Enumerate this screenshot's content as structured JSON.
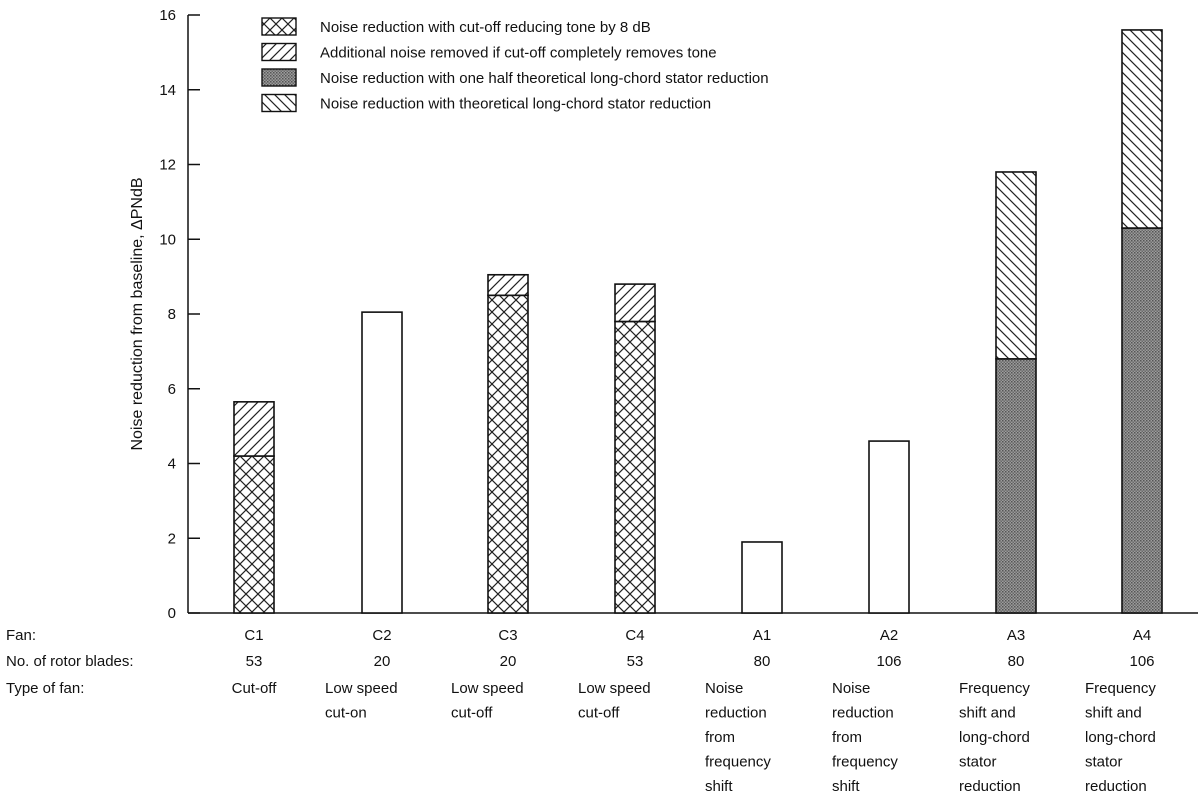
{
  "chart_data": {
    "type": "bar",
    "stacked": true,
    "title": "",
    "xlabel": "",
    "ylabel": "Noise reduction from baseline, ΔPNdB",
    "ylim": [
      0,
      16
    ],
    "yticks": [
      0,
      2,
      4,
      6,
      8,
      10,
      12,
      14,
      16
    ],
    "grid": false,
    "legend_position": "top",
    "categories": [
      "C1",
      "C2",
      "C3",
      "C4",
      "A1",
      "A2",
      "A3",
      "A4"
    ],
    "series": [
      {
        "name": "Noise reduction with cut-off reducing tone by 8 dB",
        "pattern": "crosshatch",
        "values": [
          4.2,
          0,
          8.5,
          7.8,
          0,
          0,
          0,
          0
        ]
      },
      {
        "name": "Additional noise removed if cut-off completely removes tone",
        "pattern": "forward-diagonal",
        "values": [
          1.45,
          0,
          0.55,
          1.0,
          0,
          0,
          0,
          0
        ]
      },
      {
        "name": "Noise reduction with one half theoretical long-chord stator reduction",
        "pattern": "dense-stipple",
        "values": [
          0,
          0,
          0,
          0,
          0,
          0,
          6.8,
          10.3
        ]
      },
      {
        "name": "Noise reduction with theoretical long-chord stator reduction",
        "pattern": "back-diagonal",
        "values": [
          0,
          0,
          0,
          0,
          0,
          0,
          5.0,
          5.3
        ]
      },
      {
        "name": "",
        "pattern": "plain",
        "values": [
          0,
          8.05,
          0,
          0,
          1.9,
          4.6,
          0,
          0
        ]
      }
    ],
    "table": {
      "row_labels": [
        "Fan:",
        "No. of rotor blades:",
        "Type of fan:"
      ],
      "fan": [
        "C1",
        "C2",
        "C3",
        "C4",
        "A1",
        "A2",
        "A3",
        "A4"
      ],
      "blades": [
        "53",
        "20",
        "20",
        "53",
        "80",
        "106",
        "80",
        "106"
      ],
      "type_lines": [
        [
          "Cut-off"
        ],
        [
          "Low speed",
          "cut-on"
        ],
        [
          "Low speed",
          "cut-off"
        ],
        [
          "Low speed",
          "cut-off"
        ],
        [
          "Noise",
          "reduction",
          "from",
          "frequency",
          "shift"
        ],
        [
          "Noise",
          "reduction",
          "from",
          "frequency",
          "shift"
        ],
        [
          "Frequency",
          "shift and",
          "long-chord",
          "stator",
          "reduction"
        ],
        [
          "Frequency",
          "shift and",
          "long-chord",
          "stator",
          "reduction"
        ]
      ]
    }
  }
}
